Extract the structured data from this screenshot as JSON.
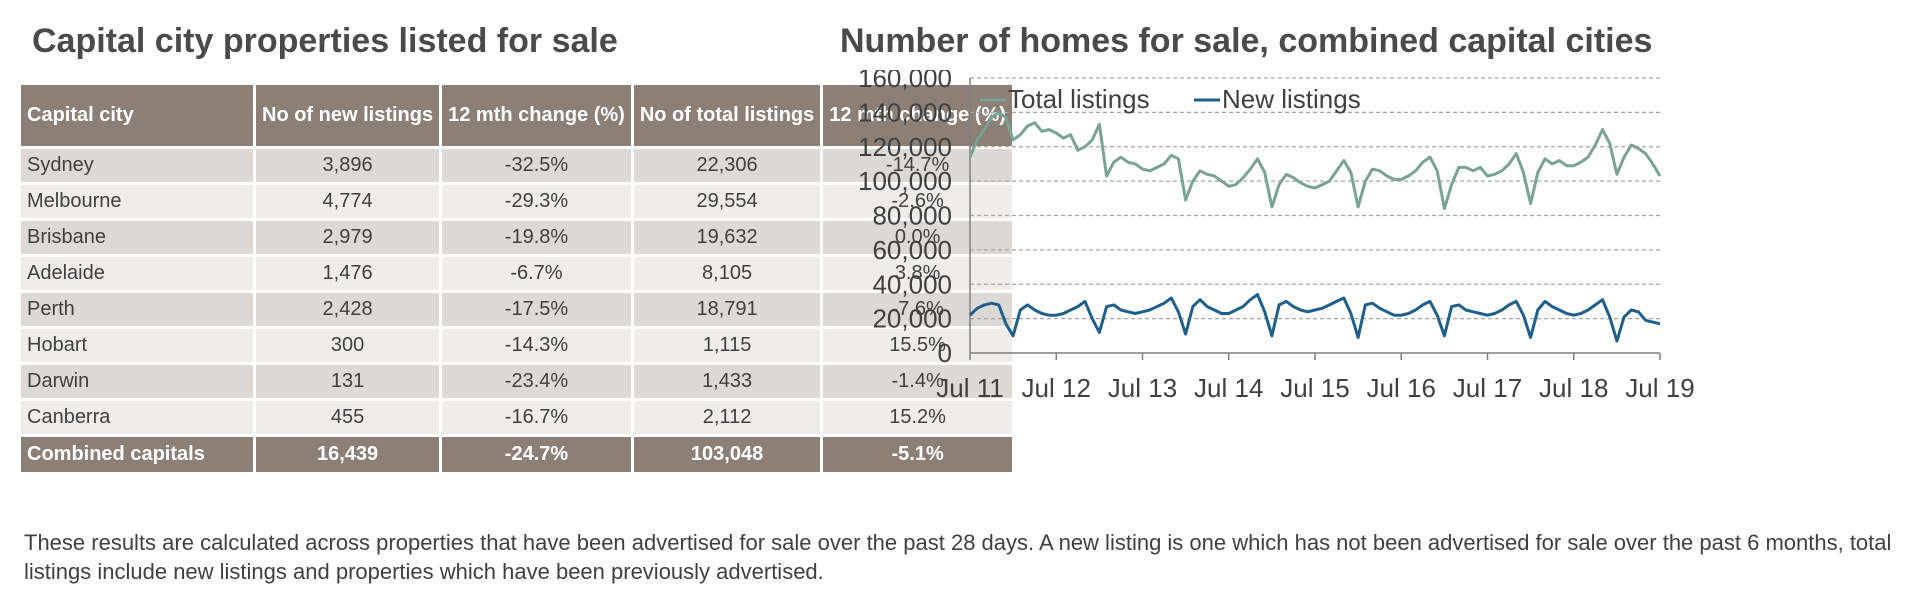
{
  "table": {
    "title": "Capital city properties listed for sale",
    "headers": [
      "Capital city",
      "No of new listings",
      "12 mth change (%)",
      "No of total listings",
      "12 mth change (%)"
    ],
    "rows": [
      {
        "city": "Sydney",
        "new": "3,896",
        "new_change": "-32.5%",
        "total": "22,306",
        "total_change": "-14.7%"
      },
      {
        "city": "Melbourne",
        "new": "4,774",
        "new_change": "-29.3%",
        "total": "29,554",
        "total_change": "-2.6%"
      },
      {
        "city": "Brisbane",
        "new": "2,979",
        "new_change": "-19.8%",
        "total": "19,632",
        "total_change": "0.0%"
      },
      {
        "city": "Adelaide",
        "new": "1,476",
        "new_change": "-6.7%",
        "total": "8,105",
        "total_change": "3.8%"
      },
      {
        "city": "Perth",
        "new": "2,428",
        "new_change": "-17.5%",
        "total": "18,791",
        "total_change": "-7.6%"
      },
      {
        "city": "Hobart",
        "new": "300",
        "new_change": "-14.3%",
        "total": "1,115",
        "total_change": "15.5%"
      },
      {
        "city": "Darwin",
        "new": "131",
        "new_change": "-23.4%",
        "total": "1,433",
        "total_change": "-1.4%"
      },
      {
        "city": "Canberra",
        "new": "455",
        "new_change": "-16.7%",
        "total": "2,112",
        "total_change": "15.2%"
      }
    ],
    "total": {
      "city": "Combined capitals",
      "new": "16,439",
      "new_change": "-24.7%",
      "total": "103,048",
      "total_change": "-5.1%"
    },
    "colors": {
      "header": "#8b7f76",
      "row_odd": "#dcd9d6",
      "row_even": "#efedeb"
    }
  },
  "chart_data": {
    "type": "line",
    "title": "Number of homes for sale, combined capital cities",
    "xlabel": "",
    "ylabel": "",
    "x_ticks": [
      "Jul 11",
      "Jul 12",
      "Jul 13",
      "Jul 14",
      "Jul 15",
      "Jul 16",
      "Jul 17",
      "Jul 18",
      "Jul 19"
    ],
    "y_ticks": [
      "0",
      "20,000",
      "40,000",
      "60,000",
      "80,000",
      "100,000",
      "120,000",
      "140,000",
      "160,000"
    ],
    "ylim": [
      0,
      160000
    ],
    "xlim": [
      "Jul 11",
      "Jul 19"
    ],
    "grid": "horizontal dashed",
    "legend": "top-left",
    "series": [
      {
        "name": "Total listings",
        "color": "#79a395",
        "points": [
          [
            "Jul 11",
            114000
          ],
          [
            "Aug 11",
            124000
          ],
          [
            "Sep 11",
            130000
          ],
          [
            "Oct 11",
            137000
          ],
          [
            "Nov 11",
            140000
          ],
          [
            "Dec 11",
            137000
          ],
          [
            "Jan 12",
            124000
          ],
          [
            "Feb 12",
            127000
          ],
          [
            "Mar 12",
            132000
          ],
          [
            "Apr 12",
            134000
          ],
          [
            "May 12",
            129000
          ],
          [
            "Jun 12",
            130000
          ],
          [
            "Jul 12",
            128000
          ],
          [
            "Aug 12",
            125000
          ],
          [
            "Sep 12",
            127000
          ],
          [
            "Oct 12",
            118000
          ],
          [
            "Nov 12",
            120000
          ],
          [
            "Dec 12",
            124000
          ],
          [
            "Jan 13",
            133000
          ],
          [
            "Feb 13",
            103000
          ],
          [
            "Mar 13",
            111000
          ],
          [
            "Apr 13",
            114000
          ],
          [
            "May 13",
            111000
          ],
          [
            "Jun 13",
            110000
          ],
          [
            "Jul 13",
            107000
          ],
          [
            "Aug 13",
            106000
          ],
          [
            "Sep 13",
            108000
          ],
          [
            "Oct 13",
            110000
          ],
          [
            "Nov 13",
            115000
          ],
          [
            "Dec 13",
            113000
          ],
          [
            "Jan 14",
            89000
          ],
          [
            "Feb 14",
            100000
          ],
          [
            "Mar 14",
            106000
          ],
          [
            "Apr 14",
            104000
          ],
          [
            "May 14",
            103000
          ],
          [
            "Jun 14",
            100000
          ],
          [
            "Jul 14",
            97000
          ],
          [
            "Aug 14",
            98000
          ],
          [
            "Sep 14",
            102000
          ],
          [
            "Oct 14",
            107000
          ],
          [
            "Nov 14",
            113000
          ],
          [
            "Dec 14",
            105000
          ],
          [
            "Jan 15",
            85000
          ],
          [
            "Feb 15",
            98000
          ],
          [
            "Mar 15",
            104000
          ],
          [
            "Apr 15",
            102000
          ],
          [
            "May 15",
            99000
          ],
          [
            "Jun 15",
            97000
          ],
          [
            "Jul 15",
            96000
          ],
          [
            "Aug 15",
            98000
          ],
          [
            "Sep 15",
            100000
          ],
          [
            "Oct 15",
            106000
          ],
          [
            "Nov 15",
            112000
          ],
          [
            "Dec 15",
            105000
          ],
          [
            "Jan 16",
            85000
          ],
          [
            "Feb 16",
            100000
          ],
          [
            "Mar 16",
            107000
          ],
          [
            "Apr 16",
            106000
          ],
          [
            "May 16",
            103000
          ],
          [
            "Jun 16",
            101000
          ],
          [
            "Jul 16",
            101000
          ],
          [
            "Aug 16",
            103000
          ],
          [
            "Sep 16",
            106000
          ],
          [
            "Oct 16",
            111000
          ],
          [
            "Nov 16",
            114000
          ],
          [
            "Dec 16",
            106000
          ],
          [
            "Jan 17",
            84000
          ],
          [
            "Feb 17",
            98000
          ],
          [
            "Mar 17",
            108000
          ],
          [
            "Apr 17",
            108000
          ],
          [
            "May 17",
            106000
          ],
          [
            "Jun 17",
            108000
          ],
          [
            "Jul 17",
            103000
          ],
          [
            "Aug 17",
            104000
          ],
          [
            "Sep 17",
            106000
          ],
          [
            "Oct 17",
            110000
          ],
          [
            "Nov 17",
            116000
          ],
          [
            "Dec 17",
            105000
          ],
          [
            "Jan 18",
            87000
          ],
          [
            "Feb 18",
            105000
          ],
          [
            "Mar 18",
            113000
          ],
          [
            "Apr 18",
            110000
          ],
          [
            "May 18",
            112000
          ],
          [
            "Jun 18",
            109000
          ],
          [
            "Jul 18",
            109000
          ],
          [
            "Aug 18",
            111000
          ],
          [
            "Sep 18",
            114000
          ],
          [
            "Oct 18",
            121000
          ],
          [
            "Nov 18",
            130000
          ],
          [
            "Dec 18",
            122000
          ],
          [
            "Jan 19",
            104000
          ],
          [
            "Feb 19",
            114000
          ],
          [
            "Mar 19",
            121000
          ],
          [
            "Apr 19",
            119000
          ],
          [
            "May 19",
            116000
          ],
          [
            "Jun 19",
            110000
          ],
          [
            "Jul 19",
            103000
          ]
        ]
      },
      {
        "name": "New listings",
        "color": "#1f5f8b",
        "points": [
          [
            "Jul 11",
            22000
          ],
          [
            "Aug 11",
            26000
          ],
          [
            "Sep 11",
            28000
          ],
          [
            "Oct 11",
            29000
          ],
          [
            "Nov 11",
            28000
          ],
          [
            "Dec 11",
            17000
          ],
          [
            "Jan 12",
            10000
          ],
          [
            "Feb 12",
            25000
          ],
          [
            "Mar 12",
            28000
          ],
          [
            "Apr 12",
            25000
          ],
          [
            "May 12",
            23000
          ],
          [
            "Jun 12",
            22000
          ],
          [
            "Jul 12",
            22000
          ],
          [
            "Aug 12",
            23000
          ],
          [
            "Sep 12",
            25000
          ],
          [
            "Oct 12",
            27000
          ],
          [
            "Nov 12",
            30000
          ],
          [
            "Dec 12",
            20000
          ],
          [
            "Jan 13",
            12000
          ],
          [
            "Feb 13",
            27000
          ],
          [
            "Mar 13",
            28000
          ],
          [
            "Apr 13",
            25000
          ],
          [
            "May 13",
            24000
          ],
          [
            "Jun 13",
            23000
          ],
          [
            "Jul 13",
            24000
          ],
          [
            "Aug 13",
            25000
          ],
          [
            "Sep 13",
            27000
          ],
          [
            "Oct 13",
            29000
          ],
          [
            "Nov 13",
            32000
          ],
          [
            "Dec 13",
            24000
          ],
          [
            "Jan 14",
            11000
          ],
          [
            "Feb 14",
            27000
          ],
          [
            "Mar 14",
            31000
          ],
          [
            "Apr 14",
            27000
          ],
          [
            "May 14",
            25000
          ],
          [
            "Jun 14",
            23000
          ],
          [
            "Jul 14",
            23000
          ],
          [
            "Aug 14",
            25000
          ],
          [
            "Sep 14",
            27000
          ],
          [
            "Oct 14",
            31000
          ],
          [
            "Nov 14",
            34000
          ],
          [
            "Dec 14",
            24000
          ],
          [
            "Jan 15",
            10000
          ],
          [
            "Feb 15",
            28000
          ],
          [
            "Mar 15",
            30000
          ],
          [
            "Apr 15",
            27000
          ],
          [
            "May 15",
            25000
          ],
          [
            "Jun 15",
            24000
          ],
          [
            "Jul 15",
            25000
          ],
          [
            "Aug 15",
            26000
          ],
          [
            "Sep 15",
            28000
          ],
          [
            "Oct 15",
            30000
          ],
          [
            "Nov 15",
            32000
          ],
          [
            "Dec 15",
            23000
          ],
          [
            "Jan 16",
            9000
          ],
          [
            "Feb 16",
            28000
          ],
          [
            "Mar 16",
            29000
          ],
          [
            "Apr 16",
            26000
          ],
          [
            "May 16",
            24000
          ],
          [
            "Jun 16",
            22000
          ],
          [
            "Jul 16",
            22000
          ],
          [
            "Aug 16",
            23000
          ],
          [
            "Sep 16",
            25000
          ],
          [
            "Oct 16",
            28000
          ],
          [
            "Nov 16",
            30000
          ],
          [
            "Dec 16",
            22000
          ],
          [
            "Jan 17",
            10000
          ],
          [
            "Feb 17",
            27000
          ],
          [
            "Mar 17",
            28000
          ],
          [
            "Apr 17",
            25000
          ],
          [
            "May 17",
            24000
          ],
          [
            "Jun 17",
            23000
          ],
          [
            "Jul 17",
            22000
          ],
          [
            "Aug 17",
            23000
          ],
          [
            "Sep 17",
            25000
          ],
          [
            "Oct 17",
            28000
          ],
          [
            "Nov 17",
            30000
          ],
          [
            "Dec 17",
            22000
          ],
          [
            "Jan 18",
            9000
          ],
          [
            "Feb 18",
            25000
          ],
          [
            "Mar 18",
            30000
          ],
          [
            "Apr 18",
            27000
          ],
          [
            "May 18",
            25000
          ],
          [
            "Jun 18",
            23000
          ],
          [
            "Jul 18",
            22000
          ],
          [
            "Aug 18",
            23000
          ],
          [
            "Sep 18",
            25000
          ],
          [
            "Oct 18",
            28000
          ],
          [
            "Nov 18",
            31000
          ],
          [
            "Dec 18",
            21000
          ],
          [
            "Jan 19",
            7000
          ],
          [
            "Feb 19",
            21000
          ],
          [
            "Mar 19",
            25000
          ],
          [
            "Apr 19",
            24000
          ],
          [
            "May 19",
            19000
          ],
          [
            "Jun 19",
            18000
          ],
          [
            "Jul 19",
            17000
          ]
        ]
      }
    ]
  },
  "footnote": "These results are calculated across properties that have been advertised for sale over the past 28 days.  A new listing is one which has not been advertised for sale over the past 6 months, total listings include new listings and properties which have been previously advertised."
}
